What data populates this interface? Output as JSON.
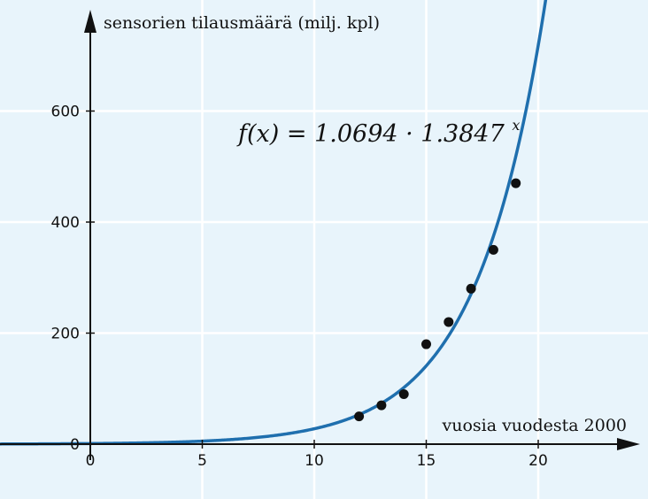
{
  "chart_data": {
    "type": "scatter",
    "title": "",
    "xlabel": "vuosia vuodesta 2000",
    "ylabel": "sensorien tilausmäärä (milj. kpl)",
    "xlim": [
      -4,
      24.5
    ],
    "ylim": [
      0,
      760
    ],
    "x_ticks": [
      0,
      5,
      10,
      15,
      20
    ],
    "y_ticks": [
      0,
      200,
      400,
      600
    ],
    "x_tick_labels": [
      "0",
      "5",
      "10",
      "15",
      "20"
    ],
    "y_tick_labels": [
      "0",
      "200",
      "400",
      "600"
    ],
    "grid": true,
    "series": [
      {
        "type": "scatter",
        "x": [
          12,
          13,
          14,
          15,
          16,
          17,
          18,
          19
        ],
        "y": [
          50,
          70,
          90,
          180,
          220,
          280,
          350,
          470
        ]
      },
      {
        "type": "line",
        "function": "exponential",
        "a": 1.0694,
        "b": 1.3847
      }
    ],
    "annotation": {
      "prefix": "f(x) = 1.0694 · 1.3847",
      "exponent": "x"
    },
    "colors": {
      "background": "#e8f4fb",
      "grid": "#ffffff",
      "axis": "#111111",
      "curve": "#1f6fae",
      "points": "#111111"
    }
  }
}
